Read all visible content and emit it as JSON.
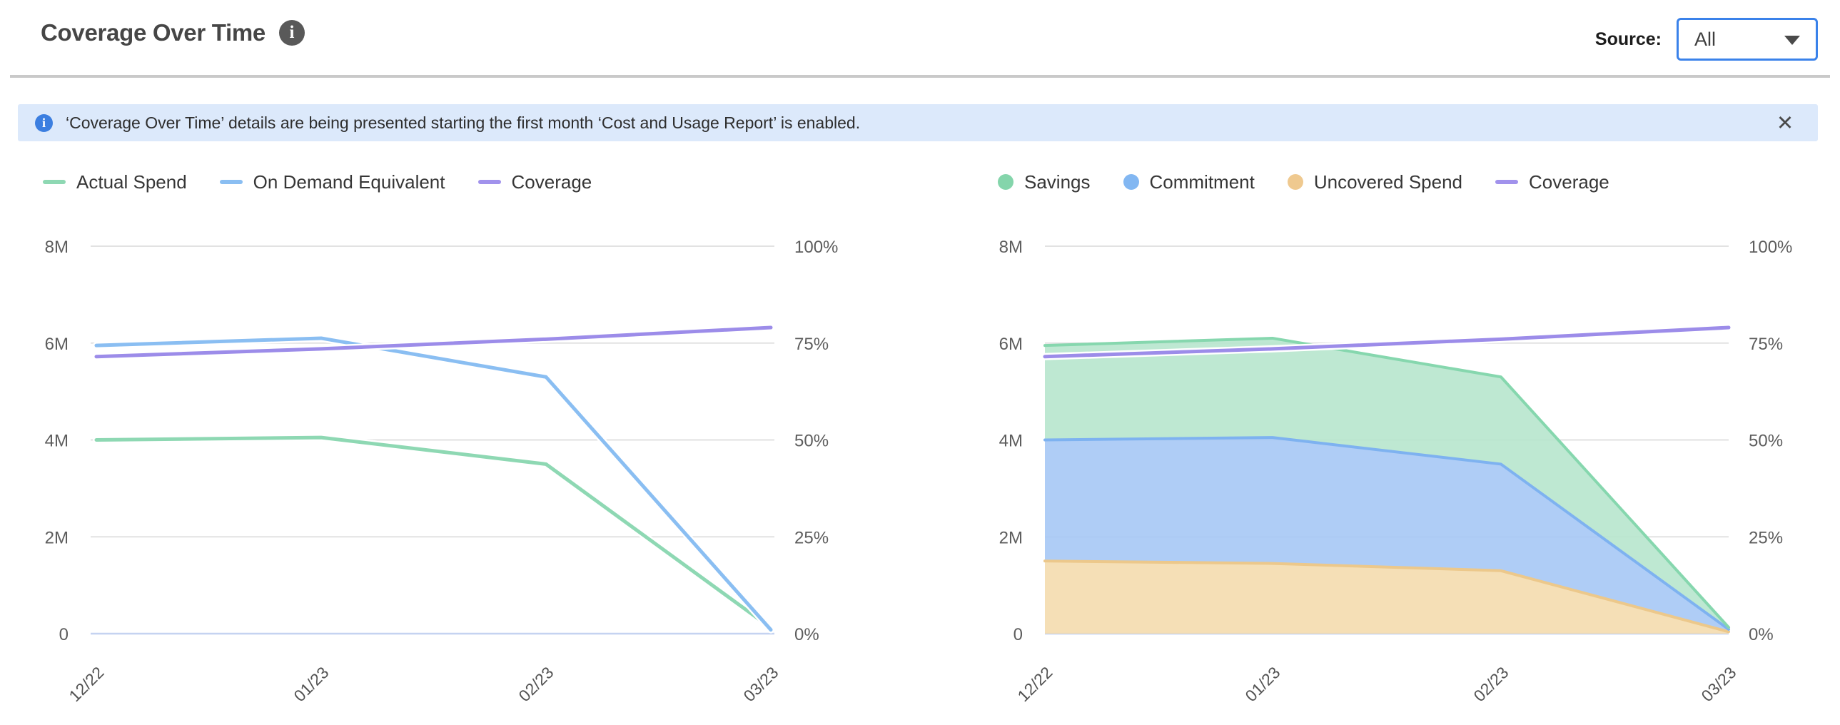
{
  "header": {
    "title": "Coverage Over Time",
    "info_glyph": "i",
    "source_label": "Source:",
    "source_value": "All"
  },
  "banner": {
    "info_glyph": "i",
    "text": "‘Coverage Over Time’ details are being presented starting the first month ‘Cost and Usage Report’ is enabled.",
    "close_glyph": "✕"
  },
  "colors": {
    "grid": "#e2e2e2",
    "zero_line": "#c5d3f1",
    "accent_border": "#3a82ea",
    "banner_bg": "#dce9fb",
    "banner_icon_bg": "#3b7ee0",
    "green": "#8ed8b3",
    "blue": "#8abef2",
    "purple": "#9c8ce9",
    "orange": "#ecc88b"
  },
  "chart_data": [
    {
      "type": "line",
      "title": "",
      "x_categories": [
        "12/22",
        "01/23",
        "02/23",
        "03/23"
      ],
      "grid": true,
      "legend_position": "top",
      "y_axis_left": {
        "unit": "M",
        "range": [
          0,
          8
        ],
        "tick_values": [
          0,
          2,
          4,
          6,
          8
        ],
        "tick_labels": [
          "0",
          "2M",
          "4M",
          "6M",
          "8M"
        ]
      },
      "y_axis_right": {
        "unit": "%",
        "range": [
          0,
          100
        ],
        "tick_values": [
          0,
          25,
          50,
          75,
          100
        ],
        "tick_labels": [
          "0%",
          "25%",
          "50%",
          "75%",
          "100%"
        ]
      },
      "series": [
        {
          "name": "Actual Spend",
          "render": "line",
          "axis": "left",
          "color": "#8ed8b3",
          "values": [
            4.0,
            4.05,
            3.5,
            0.12
          ]
        },
        {
          "name": "On Demand Equivalent",
          "render": "line",
          "axis": "left",
          "color": "#8abef2",
          "values": [
            5.95,
            6.1,
            5.3,
            0.08
          ]
        },
        {
          "name": "Coverage",
          "render": "line",
          "axis": "right",
          "color": "#9c8ce9",
          "values": [
            71.5,
            73.5,
            76,
            79
          ]
        }
      ],
      "legend": [
        {
          "label": "Actual Spend",
          "swatch": "line",
          "color": "#8ed8b3"
        },
        {
          "label": "On Demand Equivalent",
          "swatch": "line",
          "color": "#8abef2"
        },
        {
          "label": "Coverage",
          "swatch": "line",
          "color": "#a192ec"
        }
      ]
    },
    {
      "type": "area",
      "title": "",
      "x_categories": [
        "12/22",
        "01/23",
        "02/23",
        "03/23"
      ],
      "grid": true,
      "legend_position": "top",
      "y_axis_left": {
        "unit": "M",
        "range": [
          0,
          8
        ],
        "tick_values": [
          0,
          2,
          4,
          6,
          8
        ],
        "tick_labels": [
          "0",
          "2M",
          "4M",
          "6M",
          "8M"
        ]
      },
      "y_axis_right": {
        "unit": "%",
        "range": [
          0,
          100
        ],
        "tick_values": [
          0,
          25,
          50,
          75,
          100
        ],
        "tick_labels": [
          "0%",
          "25%",
          "50%",
          "75%",
          "100%"
        ]
      },
      "series": [
        {
          "name": "Uncovered Spend",
          "render": "area",
          "axis": "left",
          "color": "#ecc88b",
          "fill": "#f4dcae",
          "values": [
            1.5,
            1.45,
            1.3,
            0.04
          ]
        },
        {
          "name": "Commitment",
          "render": "area",
          "axis": "left",
          "color": "#7eb2f0",
          "fill": "#a6c8f5",
          "values": [
            2.5,
            2.6,
            2.2,
            0.05
          ]
        },
        {
          "name": "Savings",
          "render": "area",
          "axis": "left",
          "color": "#86d7ae",
          "fill": "#b7e6cd",
          "values": [
            1.95,
            2.05,
            1.8,
            0.04
          ]
        },
        {
          "name": "Coverage",
          "render": "line",
          "axis": "right",
          "color": "#9c8ce9",
          "values": [
            71.5,
            73.5,
            76,
            79
          ]
        }
      ],
      "legend": [
        {
          "label": "Savings",
          "swatch": "circle",
          "color": "#84d5ab"
        },
        {
          "label": "Commitment",
          "swatch": "circle",
          "color": "#82b7f2"
        },
        {
          "label": "Uncovered Spend",
          "swatch": "circle",
          "color": "#efc98f"
        },
        {
          "label": "Coverage",
          "swatch": "line",
          "color": "#a192ec"
        }
      ]
    }
  ]
}
